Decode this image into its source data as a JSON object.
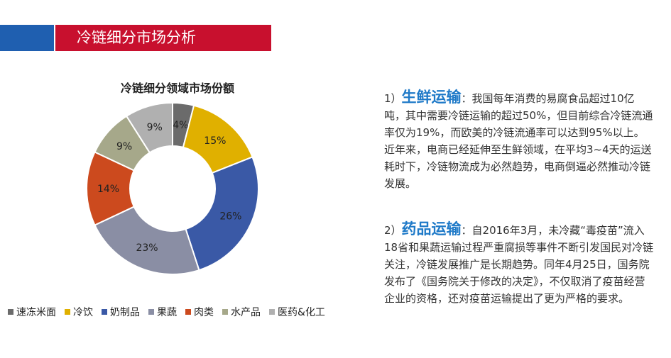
{
  "header": {
    "title": "冷链细分市场分析"
  },
  "chart_data": {
    "type": "pie",
    "title": "冷链细分领域市场份额",
    "categories": [
      "速冻米面",
      "冷饮",
      "奶制品",
      "果蔬",
      "肉类",
      "水产品",
      "医药&化工"
    ],
    "values": [
      4,
      15,
      26,
      23,
      14,
      9,
      9
    ],
    "labels": [
      "4%",
      "15%",
      "26%",
      "23%",
      "14%",
      "9%",
      "9%"
    ],
    "colors": [
      "#6b6b6b",
      "#e0b000",
      "#3a59a6",
      "#8a8ea4",
      "#cc4a1e",
      "#a6a88a",
      "#b0b0b0"
    ],
    "legend_position": "bottom"
  },
  "paragraphs": [
    {
      "prefix": "1）",
      "keyword": "生鲜运输",
      "body": "：我国每年消费的易腐食品超过10亿吨，其中需要冷链运输的超过50%，但目前综合冷链流通率仅为19%，而欧美的冷链流通率可以达到95%以上。近年来，电商已经延伸至生鲜领域，在平均3~4天的运送耗时下，冷链物流成为必然趋势，电商倒逼必然推动冷链发展。"
    },
    {
      "prefix": "2）",
      "keyword": "药品运输",
      "body": "：自2016年3月，未冷藏“毒疫苗”流入18省和果蔬运输过程严重腐损等事件不断引发国民对冷链关注，冷链发展推广是长期趋势。同年4月25日，国务院发布了《国务院关于修改的决定》，不仅取消了疫苗经营企业的资格，还对疫苗运输提出了更为严格的要求。"
    }
  ]
}
